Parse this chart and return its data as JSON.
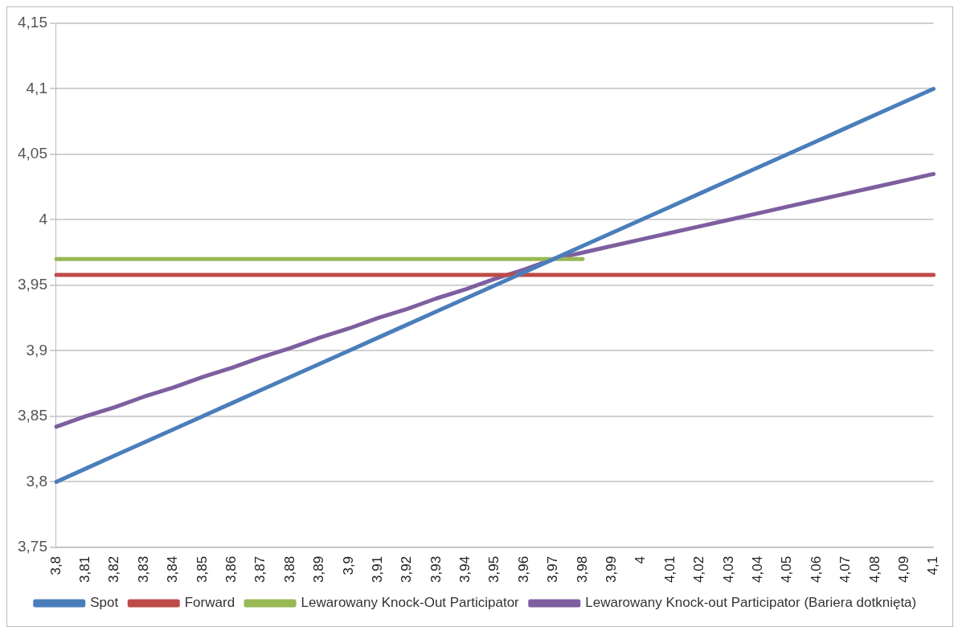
{
  "chart_data": {
    "type": "line",
    "categories": [
      "3,8",
      "3,81",
      "3,82",
      "3,83",
      "3,84",
      "3,85",
      "3,86",
      "3,87",
      "3,88",
      "3,89",
      "3,9",
      "3,91",
      "3,92",
      "3,93",
      "3,94",
      "3,95",
      "3,96",
      "3,97",
      "3,98",
      "3,99",
      "4",
      "4,01",
      "4,02",
      "4,03",
      "4,04",
      "4,05",
      "4,06",
      "4,07",
      "4,08",
      "4,09",
      "4,1"
    ],
    "series": [
      {
        "name": "Spot",
        "color": "#4a7ebb",
        "values": [
          3.8,
          3.81,
          3.82,
          3.83,
          3.84,
          3.85,
          3.86,
          3.87,
          3.88,
          3.89,
          3.9,
          3.91,
          3.92,
          3.93,
          3.94,
          3.95,
          3.96,
          3.97,
          3.98,
          3.99,
          4.0,
          4.01,
          4.02,
          4.03,
          4.04,
          4.05,
          4.06,
          4.07,
          4.08,
          4.09,
          4.1
        ]
      },
      {
        "name": "Forward",
        "color": "#be4b48",
        "values": [
          3.958,
          3.958,
          3.958,
          3.958,
          3.958,
          3.958,
          3.958,
          3.958,
          3.958,
          3.958,
          3.958,
          3.958,
          3.958,
          3.958,
          3.958,
          3.958,
          3.958,
          3.958,
          3.958,
          3.958,
          3.958,
          3.958,
          3.958,
          3.958,
          3.958,
          3.958,
          3.958,
          3.958,
          3.958,
          3.958,
          3.958
        ]
      },
      {
        "name": "Lewarowany Knock-Out Participator",
        "color": "#98b954",
        "values": [
          3.97,
          3.97,
          3.97,
          3.97,
          3.97,
          3.97,
          3.97,
          3.97,
          3.97,
          3.97,
          3.97,
          3.97,
          3.97,
          3.97,
          3.97,
          3.97,
          3.97,
          3.97,
          3.97,
          null,
          null,
          null,
          null,
          null,
          null,
          null,
          null,
          null,
          null,
          null,
          null
        ]
      },
      {
        "name": "Lewarowany Knock-out Participator (Bariera dotknięta)",
        "color": "#7d5fa0",
        "values": [
          3.842,
          3.85,
          3.857,
          3.865,
          3.872,
          3.88,
          3.887,
          3.895,
          3.902,
          3.91,
          3.917,
          3.925,
          3.932,
          3.94,
          3.947,
          3.955,
          3.962,
          3.97,
          3.975,
          3.98,
          3.985,
          3.99,
          3.995,
          4.0,
          4.005,
          4.01,
          4.015,
          4.02,
          4.025,
          4.03,
          4.035
        ]
      }
    ],
    "ylim": [
      3.75,
      4.15
    ],
    "yticks": [
      {
        "value": 3.75,
        "label": "3,75"
      },
      {
        "value": 3.8,
        "label": "3,8"
      },
      {
        "value": 3.85,
        "label": "3,85"
      },
      {
        "value": 3.9,
        "label": "3,9"
      },
      {
        "value": 3.95,
        "label": "3,95"
      },
      {
        "value": 4.0,
        "label": "4"
      },
      {
        "value": 4.05,
        "label": "4,05"
      },
      {
        "value": 4.1,
        "label": "4,1"
      },
      {
        "value": 4.15,
        "label": "4,15"
      }
    ],
    "grid": "y",
    "legend": "bottom",
    "marker": "none",
    "line_style": "solid"
  }
}
